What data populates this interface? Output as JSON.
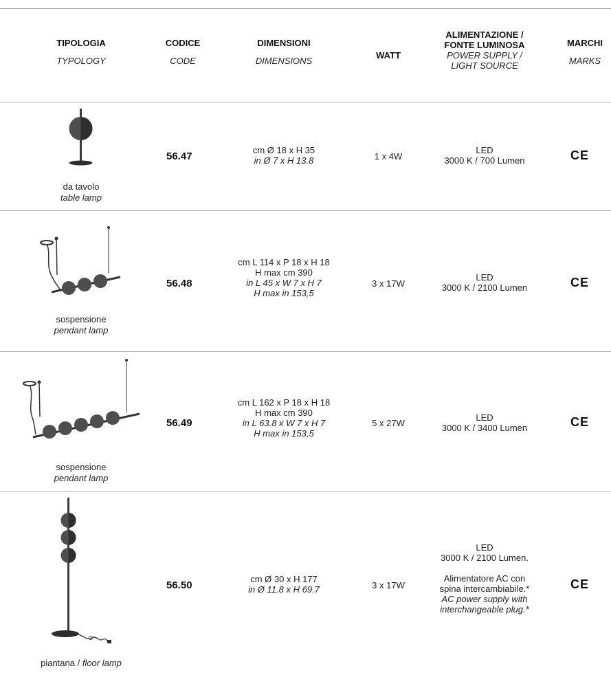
{
  "headers": {
    "typology": {
      "it": "TIPOLOGIA",
      "en": "TYPOLOGY"
    },
    "code": {
      "it": "CODICE",
      "en": "CODE"
    },
    "dimensions": {
      "it": "DIMENSIONI",
      "en": "DIMENSIONS"
    },
    "watt": "WATT",
    "power": {
      "it1": "ALIMENTAZIONE /",
      "it2": "FONTE LUMINOSA",
      "en1": "POWER SUPPLY /",
      "en2": "LIGHT SOURCE"
    },
    "marks": {
      "it": "MARCHI",
      "en": "MARKS"
    }
  },
  "rows": [
    {
      "type_it": "da tavolo",
      "type_en": "table lamp",
      "code": "56.47",
      "dims": [
        "cm Ø 18 x H 35"
      ],
      "dims_en": [
        "in Ø  7 x H 13.8"
      ],
      "watt": "1 x 4W",
      "power": [
        "LED",
        "3000 K / 700 Lumen"
      ],
      "mark": "CE",
      "icon": "table-lamp-icon"
    },
    {
      "type_it": "sospensione",
      "type_en": "pendant lamp",
      "code": "56.48",
      "dims": [
        "cm L 114 x P 18 x H 18",
        "H max cm 390"
      ],
      "dims_en": [
        "in L 45 x W 7 x H 7",
        "H max in 153,5"
      ],
      "watt": "3 x 17W",
      "power": [
        "LED",
        "3000 K / 2100 Lumen"
      ],
      "mark": "CE",
      "icon": "pendant-lamp-3-icon"
    },
    {
      "type_it": "sospensione",
      "type_en": "pendant lamp",
      "code": "56.49",
      "dims": [
        "cm L 162 x P 18 x H 18",
        "H max cm 390"
      ],
      "dims_en": [
        "in L 63.8 x W 7 x H 7",
        "H max in 153,5"
      ],
      "watt": "5 x 27W",
      "power": [
        "LED",
        "3000 K / 3400 Lumen"
      ],
      "mark": "CE",
      "icon": "pendant-lamp-5-icon"
    },
    {
      "type_it": "piantana / ",
      "type_en": "floor lamp",
      "code": "56.50",
      "dims": [
        "cm Ø 30 x H 177"
      ],
      "dims_en": [
        "in Ø 11.8 x H 69.7"
      ],
      "watt": "3 x 17W",
      "power": [
        "LED",
        "3000 K / 2100 Lumen.",
        "Alimentatore AC con",
        "spina intercambiabile.*"
      ],
      "power_en": [
        "AC power supply with",
        "interchangeable plug.*"
      ],
      "mark": "CE",
      "icon": "floor-lamp-icon"
    }
  ]
}
